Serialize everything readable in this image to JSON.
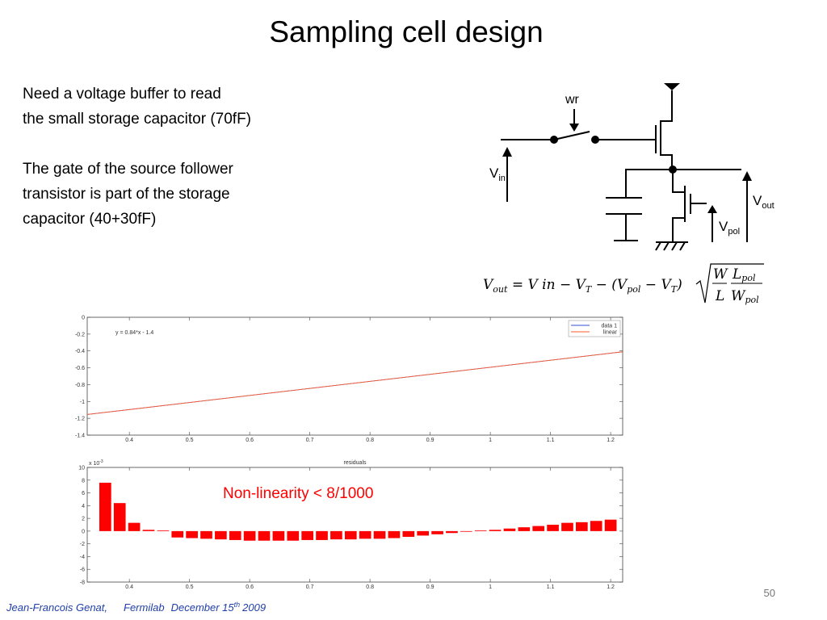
{
  "title": "Sampling cell design",
  "paragraphs": [
    [
      "Need a voltage buffer to read",
      "the small storage capacitor (70fF)"
    ],
    [
      "The gate of the source follower",
      "transistor is part of the storage",
      "capacitor  (40+30fF)"
    ]
  ],
  "circuit": {
    "wr": "wr",
    "vin": [
      "V",
      "in"
    ],
    "vout": [
      "V",
      "out"
    ],
    "vpol": [
      "V",
      "pol"
    ]
  },
  "equation": {
    "line": [
      "V",
      "out",
      " = ",
      "V in − V",
      "T",
      " − (V",
      "pol",
      " − V",
      "T",
      ")"
    ],
    "frac1": [
      "W",
      "L"
    ],
    "frac2": [
      [
        "L",
        "pol"
      ],
      [
        "W",
        "pol"
      ]
    ]
  },
  "annotation": "Non-linearity  < 8/1000",
  "chart_data": [
    {
      "type": "line",
      "annotation": "y = 0.84*x - 1.4",
      "legend": "upper right",
      "xlim": [
        0.33,
        1.22
      ],
      "xticks": [
        0.4,
        0.5,
        0.6,
        0.7,
        0.8,
        0.9,
        1,
        1.1,
        1.2
      ],
      "ylim": [
        -1.4,
        0
      ],
      "yticks": [
        0,
        -0.2,
        -0.4,
        -0.6,
        -0.8,
        -1,
        -1.2,
        -1.4
      ],
      "grid": false,
      "x": [
        0.33,
        1.22
      ],
      "series": [
        {
          "name": "data 1",
          "color": "#3050d0",
          "values": [
            -1.155,
            -0.41
          ]
        },
        {
          "name": "linear",
          "color": "#ff5a2a",
          "values": [
            -1.155,
            -0.41
          ]
        }
      ]
    },
    {
      "type": "bar",
      "title": "residuals",
      "ylabel": [
        "x 10",
        "-3"
      ],
      "color": "#ff0000",
      "xlim": [
        0.33,
        1.22
      ],
      "xticks": [
        0.4,
        0.5,
        0.6,
        0.7,
        0.8,
        0.9,
        1,
        1.1,
        1.2
      ],
      "ylim": [
        -8,
        10
      ],
      "yticks": [
        10,
        8,
        6,
        4,
        2,
        0,
        -2,
        -4,
        -6,
        -8
      ],
      "grid": false,
      "x": [
        0.36,
        0.384,
        0.408,
        0.432,
        0.456,
        0.48,
        0.504,
        0.528,
        0.552,
        0.576,
        0.6,
        0.624,
        0.648,
        0.672,
        0.696,
        0.72,
        0.744,
        0.768,
        0.792,
        0.816,
        0.84,
        0.864,
        0.888,
        0.912,
        0.936,
        0.96,
        0.984,
        1.008,
        1.032,
        1.056,
        1.08,
        1.104,
        1.128,
        1.152,
        1.176,
        1.2
      ],
      "values": [
        7.6,
        4.4,
        1.3,
        0.2,
        0.1,
        -1.0,
        -1.1,
        -1.2,
        -1.3,
        -1.4,
        -1.5,
        -1.5,
        -1.5,
        -1.5,
        -1.4,
        -1.4,
        -1.3,
        -1.3,
        -1.2,
        -1.2,
        -1.1,
        -0.9,
        -0.7,
        -0.5,
        -0.3,
        -0.1,
        0.1,
        0.2,
        0.4,
        0.6,
        0.8,
        1.0,
        1.3,
        1.4,
        1.6,
        1.8
      ]
    }
  ],
  "footer": {
    "author": "Jean-Francois Genat,",
    "lab": "Fermilab",
    "date": "December 15",
    "date_sup": "th",
    "year": "2009"
  },
  "page_number": "50"
}
